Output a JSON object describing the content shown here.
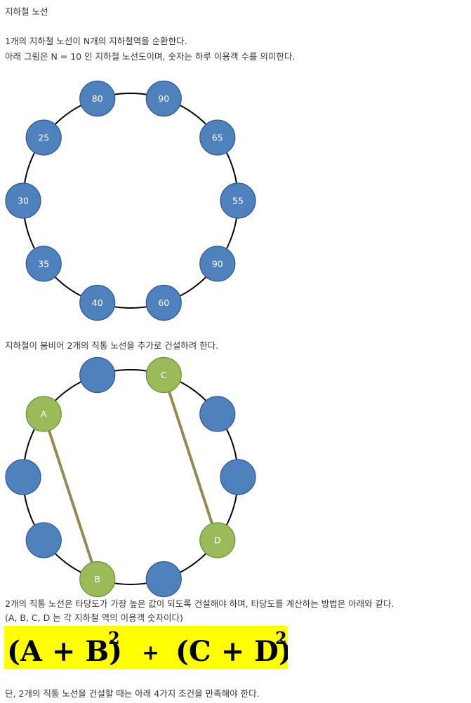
{
  "title": "지하철 노선",
  "intro": {
    "line1": "1개의 지하철 노선이 N개의 지하철역을 순환한다.",
    "line2": "아래 그림은 N = 10 인 지하철 노선도이며, 숫자는 하루 이용객 수를 의미한다."
  },
  "diagram1": {
    "node_color": "#4f81bd",
    "stations": [
      {
        "label": "80"
      },
      {
        "label": "90"
      },
      {
        "label": "65"
      },
      {
        "label": "55"
      },
      {
        "label": "90"
      },
      {
        "label": "60"
      },
      {
        "label": "40"
      },
      {
        "label": "35"
      },
      {
        "label": "30"
      },
      {
        "label": "25"
      }
    ]
  },
  "paragraph2": "지하철이 붐비어 2개의 직통 노선을 추가로 건설하려 한다.",
  "diagram2": {
    "node_color": "#4f81bd",
    "highlight_color": "#9bbb59",
    "line_color": "#948a54",
    "stations": [
      {
        "label": ""
      },
      {
        "label": "C"
      },
      {
        "label": ""
      },
      {
        "label": ""
      },
      {
        "label": "D"
      },
      {
        "label": ""
      },
      {
        "label": "B"
      },
      {
        "label": ""
      },
      {
        "label": ""
      },
      {
        "label": "A"
      }
    ],
    "connections": [
      {
        "from": "A",
        "to": "B"
      },
      {
        "from": "C",
        "to": "D"
      }
    ]
  },
  "paragraph3": {
    "line1": "2개의 직통 노선은 타당도가 가장 높은 값이 되도록 건설해야 하며, 타당도를 계산하는 방법은 아래와 같다.",
    "line2": "(A, B, C, D 는 각 지하철 역의 이용객 숫자이다)"
  },
  "formula": {
    "term1": "(A + B)",
    "exp1": "2",
    "plus": "+",
    "term2": "(C + D)",
    "exp2": "2",
    "background": "#ffff00"
  },
  "paragraph4": "단, 2개의 직통 노선을 건설할 때는 아래 4가지 조건을 만족해야 한다."
}
